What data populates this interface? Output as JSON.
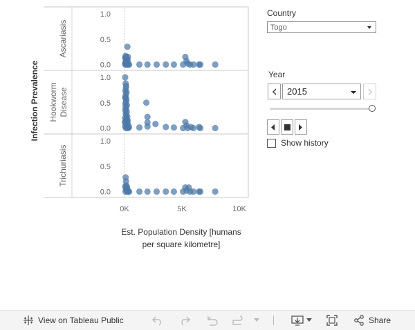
{
  "chart_data": {
    "type": "scatter",
    "x_axis": {
      "title": "Est. Population Density [humans per square kilometre]",
      "ticks": [
        "0K",
        "5K",
        "10K"
      ],
      "range": [
        0,
        10000
      ]
    },
    "y_axis": {
      "title": "Infection Prevalence",
      "range": [
        0,
        1.05
      ],
      "ticks": [
        "0.0",
        "0.5",
        "1.0"
      ]
    },
    "color": "#4e79a7",
    "panels": [
      {
        "name": "Ascariasis",
        "points": [
          [
            50,
            0.02
          ],
          [
            100,
            0.05
          ],
          [
            120,
            0.12
          ],
          [
            150,
            0.15
          ],
          [
            200,
            0.08
          ],
          [
            230,
            0.03
          ],
          [
            250,
            0.35
          ],
          [
            300,
            0.15
          ],
          [
            80,
            0.0
          ],
          [
            160,
            0.0
          ],
          [
            260,
            0.01
          ],
          [
            330,
            0.0
          ],
          [
            400,
            0.0
          ],
          [
            180,
            0.1
          ],
          [
            90,
            0.17
          ],
          [
            60,
            0.13
          ],
          [
            140,
            0.06
          ],
          [
            220,
            0.11
          ],
          [
            280,
            0.07
          ],
          [
            1300,
            0.0
          ],
          [
            2000,
            0.0
          ],
          [
            2800,
            0.0
          ],
          [
            3600,
            0.0
          ],
          [
            4300,
            0.0
          ],
          [
            5100,
            0.0
          ],
          [
            5300,
            0.15
          ],
          [
            5400,
            0.07
          ],
          [
            5500,
            0.02
          ],
          [
            5700,
            0.0
          ],
          [
            6000,
            0.0
          ],
          [
            6500,
            0.0
          ],
          [
            6600,
            0.0
          ],
          [
            7900,
            0.0
          ]
        ]
      },
      {
        "name": "Hookworm Disease",
        "points": [
          [
            60,
            1.0
          ],
          [
            100,
            0.88
          ],
          [
            150,
            0.83
          ],
          [
            120,
            0.78
          ],
          [
            80,
            0.73
          ],
          [
            180,
            0.7
          ],
          [
            110,
            0.65
          ],
          [
            60,
            0.6
          ],
          [
            170,
            0.56
          ],
          [
            130,
            0.52
          ],
          [
            80,
            0.48
          ],
          [
            210,
            0.45
          ],
          [
            90,
            0.42
          ],
          [
            150,
            0.38
          ],
          [
            70,
            0.35
          ],
          [
            200,
            0.32
          ],
          [
            110,
            0.28
          ],
          [
            170,
            0.25
          ],
          [
            60,
            0.2
          ],
          [
            130,
            0.17
          ],
          [
            220,
            0.14
          ],
          [
            90,
            0.1
          ],
          [
            190,
            0.07
          ],
          [
            50,
            0.03
          ],
          [
            140,
            0.0
          ],
          [
            250,
            0.01
          ],
          [
            300,
            0.06
          ],
          [
            330,
            0.0
          ],
          [
            400,
            0.02
          ],
          [
            30,
            0.12
          ],
          [
            240,
            0.22
          ],
          [
            280,
            0.15
          ],
          [
            260,
            0.09
          ],
          [
            100,
            0.6
          ],
          [
            1300,
            0.01
          ],
          [
            1900,
            0.5
          ],
          [
            2000,
            0.22
          ],
          [
            2000,
            0.11
          ],
          [
            2000,
            0.03
          ],
          [
            2700,
            0.08
          ],
          [
            3600,
            0.02
          ],
          [
            4300,
            0.01
          ],
          [
            5100,
            0.0
          ],
          [
            5300,
            0.12
          ],
          [
            5400,
            0.05
          ],
          [
            5500,
            0.0
          ],
          [
            5800,
            0.02
          ],
          [
            6000,
            0.0
          ],
          [
            6500,
            0.02
          ],
          [
            6600,
            0.0
          ],
          [
            7900,
            0.0
          ]
        ]
      },
      {
        "name": "Trichuriasis",
        "points": [
          [
            90,
            0.0
          ],
          [
            100,
            0.28
          ],
          [
            130,
            0.2
          ],
          [
            150,
            0.12
          ],
          [
            200,
            0.06
          ],
          [
            180,
            0.03
          ],
          [
            250,
            0.0
          ],
          [
            300,
            0.02
          ],
          [
            60,
            0.1
          ],
          [
            120,
            0.05
          ],
          [
            220,
            0.09
          ],
          [
            330,
            0.0
          ],
          [
            400,
            0.0
          ],
          [
            1300,
            0.0
          ],
          [
            2000,
            0.0
          ],
          [
            2800,
            0.0
          ],
          [
            3600,
            0.0
          ],
          [
            4300,
            0.0
          ],
          [
            5100,
            0.0
          ],
          [
            5300,
            0.08
          ],
          [
            5400,
            0.02
          ],
          [
            5600,
            0.08
          ],
          [
            5700,
            0.0
          ],
          [
            6000,
            0.0
          ],
          [
            6500,
            0.0
          ],
          [
            6600,
            0.0
          ],
          [
            7900,
            0.0
          ]
        ]
      }
    ],
    "grid": true
  },
  "filters": {
    "country": {
      "label": "Country",
      "value": "Togo"
    },
    "year": {
      "label": "Year",
      "value": "2015",
      "slider_position": 1.0
    },
    "show_history": {
      "label": "Show history",
      "checked": false
    }
  },
  "toolbar": {
    "view_on_tableau": "View on Tableau Public",
    "share": "Share"
  }
}
